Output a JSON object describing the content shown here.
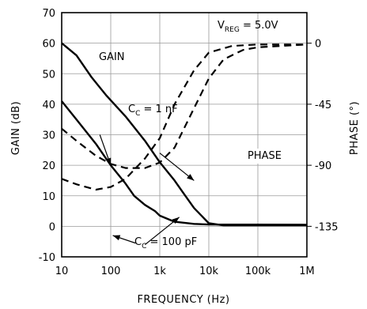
{
  "chart_data": {
    "type": "line",
    "xlabel": "FREQUENCY (Hz)",
    "ylabel": "GAIN (dB)",
    "y2label": "PHASE (°)",
    "x_scale": "log",
    "xlim": [
      10,
      1000000
    ],
    "ylim": [
      -10,
      70
    ],
    "y2lim": [
      -157.5,
      22.5
    ],
    "grid": true,
    "x_ticks": [
      {
        "value": 10,
        "label": "10"
      },
      {
        "value": 100,
        "label": "100"
      },
      {
        "value": 1000,
        "label": "1k"
      },
      {
        "value": 10000,
        "label": "10k"
      },
      {
        "value": 100000,
        "label": "100k"
      },
      {
        "value": 1000000,
        "label": "1M"
      }
    ],
    "y_ticks": [
      -10,
      0,
      10,
      20,
      30,
      40,
      50,
      60,
      70
    ],
    "y2_ticks": [
      0,
      -45,
      -90,
      -135
    ],
    "series": [
      {
        "axis": "left",
        "style": "solid",
        "points": [
          [
            10,
            60
          ],
          [
            20,
            56
          ],
          [
            40,
            49
          ],
          [
            80,
            43
          ],
          [
            200,
            36
          ],
          [
            500,
            28
          ],
          [
            1000,
            21
          ],
          [
            2000,
            15
          ],
          [
            3000,
            11
          ],
          [
            5000,
            6
          ],
          [
            10000,
            1
          ],
          [
            20000,
            0.3
          ],
          [
            50000,
            0.3
          ],
          [
            1000000,
            0.3
          ]
        ]
      },
      {
        "axis": "left",
        "style": "solid",
        "points": [
          [
            10,
            41
          ],
          [
            20,
            35
          ],
          [
            50,
            27
          ],
          [
            100,
            20
          ],
          [
            200,
            14
          ],
          [
            300,
            10
          ],
          [
            500,
            7
          ],
          [
            800,
            5
          ],
          [
            1000,
            3.5
          ],
          [
            2000,
            1.5
          ],
          [
            5000,
            0.8
          ],
          [
            10000,
            0.6
          ],
          [
            1000000,
            0.5
          ]
        ]
      },
      {
        "axis": "right",
        "style": "dashed",
        "points": [
          [
            10,
            -100
          ],
          [
            20,
            -104
          ],
          [
            50,
            -108
          ],
          [
            100,
            -106
          ],
          [
            200,
            -100
          ],
          [
            500,
            -85
          ],
          [
            1000,
            -70
          ],
          [
            2000,
            -45
          ],
          [
            5000,
            -20
          ],
          [
            10000,
            -7
          ],
          [
            30000,
            -2
          ],
          [
            100000,
            -1
          ],
          [
            1000000,
            -1
          ]
        ]
      },
      {
        "axis": "right",
        "style": "dashed",
        "points": [
          [
            10,
            -63
          ],
          [
            20,
            -72
          ],
          [
            50,
            -83
          ],
          [
            100,
            -89
          ],
          [
            200,
            -92
          ],
          [
            500,
            -92
          ],
          [
            1000,
            -88
          ],
          [
            2000,
            -77
          ],
          [
            5000,
            -48
          ],
          [
            10000,
            -26
          ],
          [
            20000,
            -12
          ],
          [
            50000,
            -5
          ],
          [
            100000,
            -3
          ],
          [
            1000000,
            -1
          ]
        ]
      }
    ],
    "annotations": {
      "condition_main": "V",
      "condition_sub": "REG",
      "condition_value": " = 5.0V",
      "gain_label": "GAIN",
      "phase_label": "PHASE",
      "cc1_main": "C",
      "cc1_sub": "C",
      "cc1_value": " = 1 nF",
      "cc2_main": "C",
      "cc2_sub": "C",
      "cc2_value": " = 100 pF"
    },
    "arrows": [
      {
        "from": [
          1000,
          24
        ],
        "to": [
          5000,
          15
        ],
        "axis": "left"
      },
      {
        "from": [
          60,
          30
        ],
        "to": [
          100,
          20
        ],
        "axis": "left"
      },
      {
        "from": [
          500,
          -6
        ],
        "to": [
          2500,
          3
        ],
        "axis": "left"
      },
      {
        "from": [
          320,
          -5.5
        ],
        "to": [
          110,
          -3
        ],
        "axis": "left"
      }
    ]
  }
}
